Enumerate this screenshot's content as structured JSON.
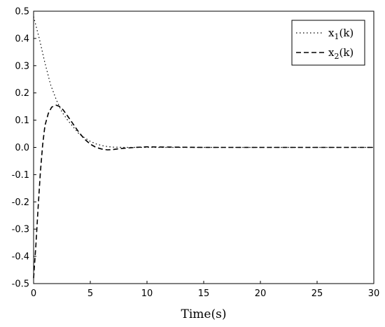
{
  "chart_data": {
    "type": "line",
    "xlabel": "Time(s)",
    "ylabel": "",
    "xlim": [
      0,
      30
    ],
    "ylim": [
      -0.5,
      0.5
    ],
    "x_ticks": [
      "0",
      "5",
      "10",
      "15",
      "20",
      "25",
      "30"
    ],
    "y_ticks": [
      "0.5",
      "0.4",
      "0.3",
      "0.2",
      "0.1",
      "0.0",
      "-0.1",
      "-0.2",
      "-0.3",
      "-0.4",
      "-0.5"
    ],
    "grid": false,
    "legend_position": "top-right",
    "legend": {
      "x1": {
        "main": "x",
        "sub": "1",
        "tail": "(k)"
      },
      "x2": {
        "main": "x",
        "sub": "2",
        "tail": "(k)"
      }
    },
    "series": [
      {
        "name": "x1(k)",
        "style": "dotted",
        "color": "#000000",
        "x": [
          0,
          0.5,
          1,
          1.5,
          2,
          2.5,
          3,
          3.5,
          4,
          4.5,
          5,
          5.5,
          6,
          6.5,
          7,
          8,
          9,
          10,
          12,
          15,
          18,
          20,
          22,
          25,
          28,
          30
        ],
        "y": [
          0.48,
          0.4,
          0.31,
          0.23,
          0.175,
          0.13,
          0.1,
          0.075,
          0.05,
          0.035,
          0.022,
          0.013,
          0.007,
          0.003,
          0.001,
          0.0,
          0.0,
          0.0,
          0.0,
          0.0,
          0.0,
          0.0,
          0.0,
          0.0,
          0.0,
          0.0
        ]
      },
      {
        "name": "x2(k)",
        "style": "dashed",
        "color": "#000000",
        "x": [
          0,
          0.2,
          0.4,
          0.6,
          0.8,
          1.0,
          1.3,
          1.6,
          2.0,
          2.3,
          2.6,
          3.0,
          3.5,
          4.0,
          4.5,
          5.0,
          5.5,
          6.0,
          6.5,
          7.0,
          7.5,
          8.0,
          9.0,
          10,
          12,
          15,
          18,
          20,
          22,
          25,
          28,
          30
        ],
        "y": [
          -0.48,
          -0.36,
          -0.22,
          -0.09,
          0.01,
          0.08,
          0.125,
          0.148,
          0.155,
          0.15,
          0.138,
          0.115,
          0.085,
          0.055,
          0.03,
          0.012,
          0.0,
          -0.006,
          -0.009,
          -0.008,
          -0.005,
          -0.003,
          0.0,
          0.002,
          0.001,
          0.0,
          0.0,
          0.0,
          0.0,
          0.0,
          0.0,
          0.0
        ]
      }
    ]
  }
}
